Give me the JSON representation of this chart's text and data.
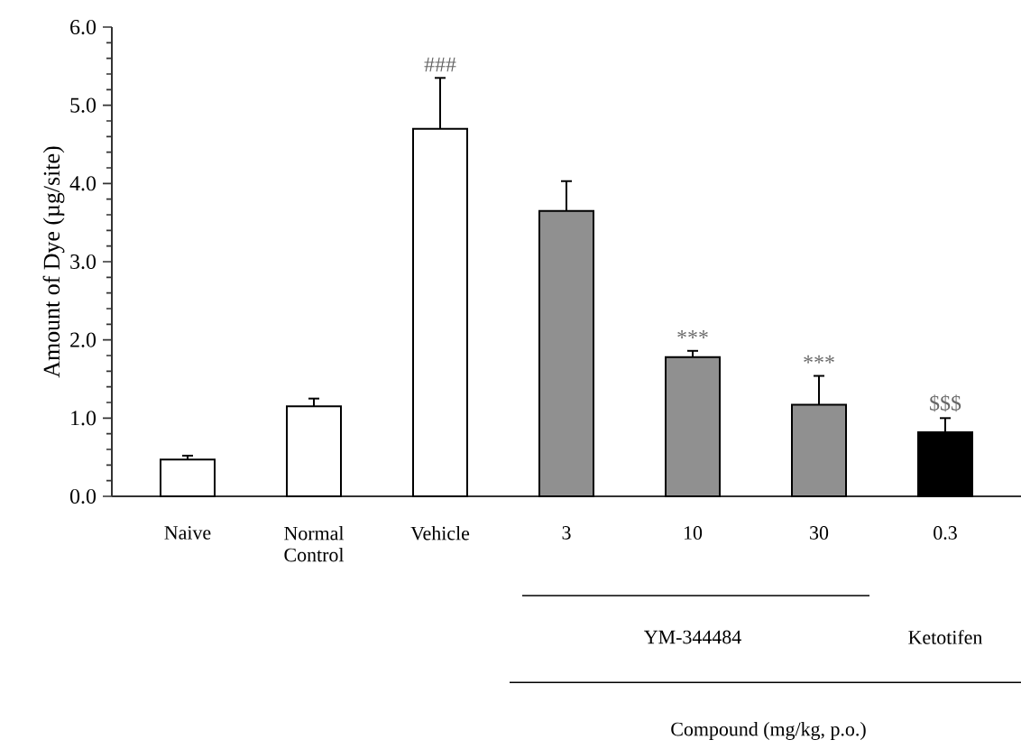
{
  "chart_data": {
    "type": "bar",
    "ylabel": "Amount of Dye (µg/site)",
    "categories": [
      "Naive",
      "Normal Control",
      "Vehicle",
      "3",
      "10",
      "30",
      "0.3"
    ],
    "values": [
      0.47,
      1.15,
      4.7,
      3.65,
      1.78,
      1.17,
      0.82
    ],
    "errors": [
      0.05,
      0.1,
      0.65,
      0.38,
      0.08,
      0.37,
      0.18
    ],
    "colors": [
      "#ffffff",
      "#ffffff",
      "#ffffff",
      "#909090",
      "#909090",
      "#909090",
      "#000000"
    ],
    "ylim": [
      0,
      6
    ],
    "yticks": [
      {
        "value": 0,
        "label": "0.0"
      },
      {
        "value": 1,
        "label": "1.0"
      },
      {
        "value": 2,
        "label": "2.0"
      },
      {
        "value": 3,
        "label": "3.0"
      },
      {
        "value": 4,
        "label": "4.0"
      },
      {
        "value": 5,
        "label": "5.0"
      },
      {
        "value": 6,
        "label": "6.0"
      }
    ],
    "annotations": [
      {
        "text": "###",
        "x": "Vehicle",
        "y": 5.35
      },
      {
        "text": "***",
        "x": "10",
        "y": 1.86
      },
      {
        "text": "***",
        "x": "30",
        "y": 1.54
      },
      {
        "text": "$$$",
        "x": "0.3",
        "y": 1.0
      },
      "YM-344484",
      "Ketotifen",
      "Compound (mg/kg, p.o.)"
    ]
  }
}
